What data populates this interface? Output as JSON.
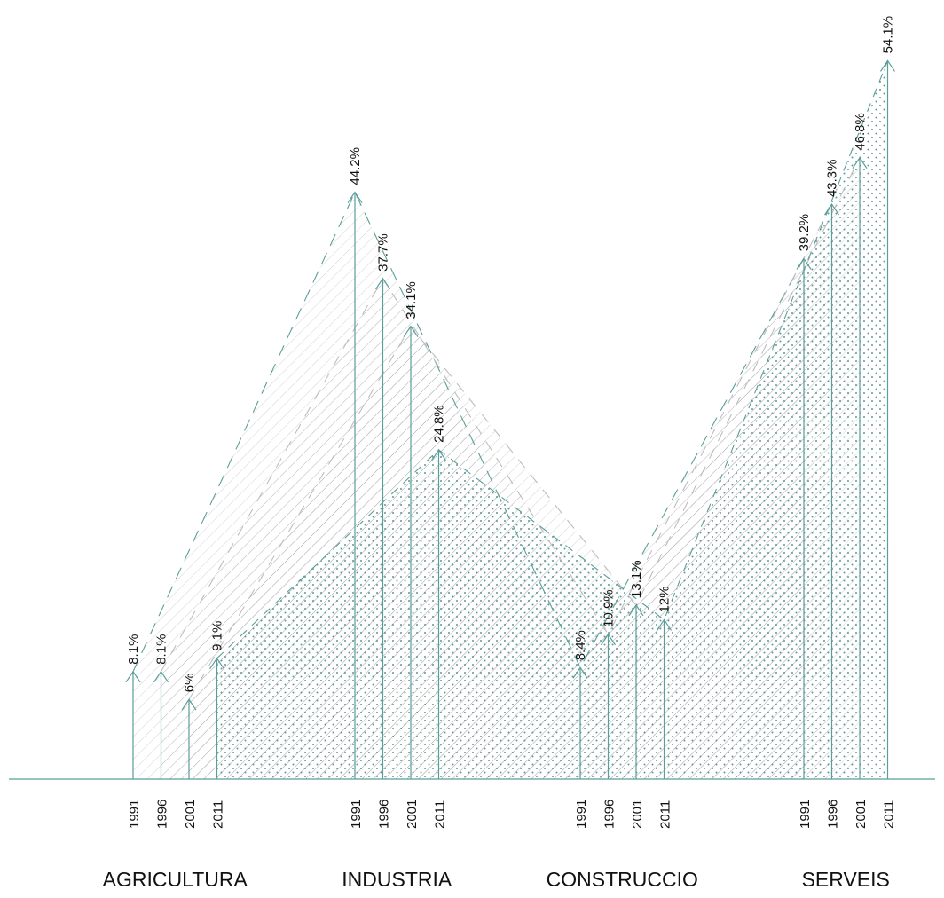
{
  "chart_data": {
    "type": "bar",
    "categories": [
      "AGRICULTURA",
      "INDUSTRIA",
      "CONSTRUCCIO",
      "SERVEIS"
    ],
    "years": [
      "1991",
      "1996",
      "2001",
      "2011"
    ],
    "series": [
      {
        "values": [
          8.1,
          44.2,
          8.4,
          39.2
        ]
      },
      {
        "values": [
          8.1,
          37.7,
          10.9,
          43.3
        ]
      },
      {
        "values": [
          6,
          34.1,
          13.1,
          46.8
        ]
      },
      {
        "values": [
          9.1,
          24.8,
          12,
          54.1
        ]
      }
    ],
    "value_labels": [
      [
        "8.1%",
        "44.2%",
        "8.4%",
        "39.2%"
      ],
      [
        "8.1%",
        "37.7%",
        "10.9%",
        "43.3%"
      ],
      [
        "6%",
        "34.1%",
        "13.1%",
        "46.8%"
      ],
      [
        "9.1%",
        "24.8%",
        "12%",
        "54.1%"
      ]
    ],
    "unit": "%",
    "ylim": [
      0,
      56
    ],
    "grid": false,
    "legend": "none",
    "color": "#5a9e9a"
  }
}
